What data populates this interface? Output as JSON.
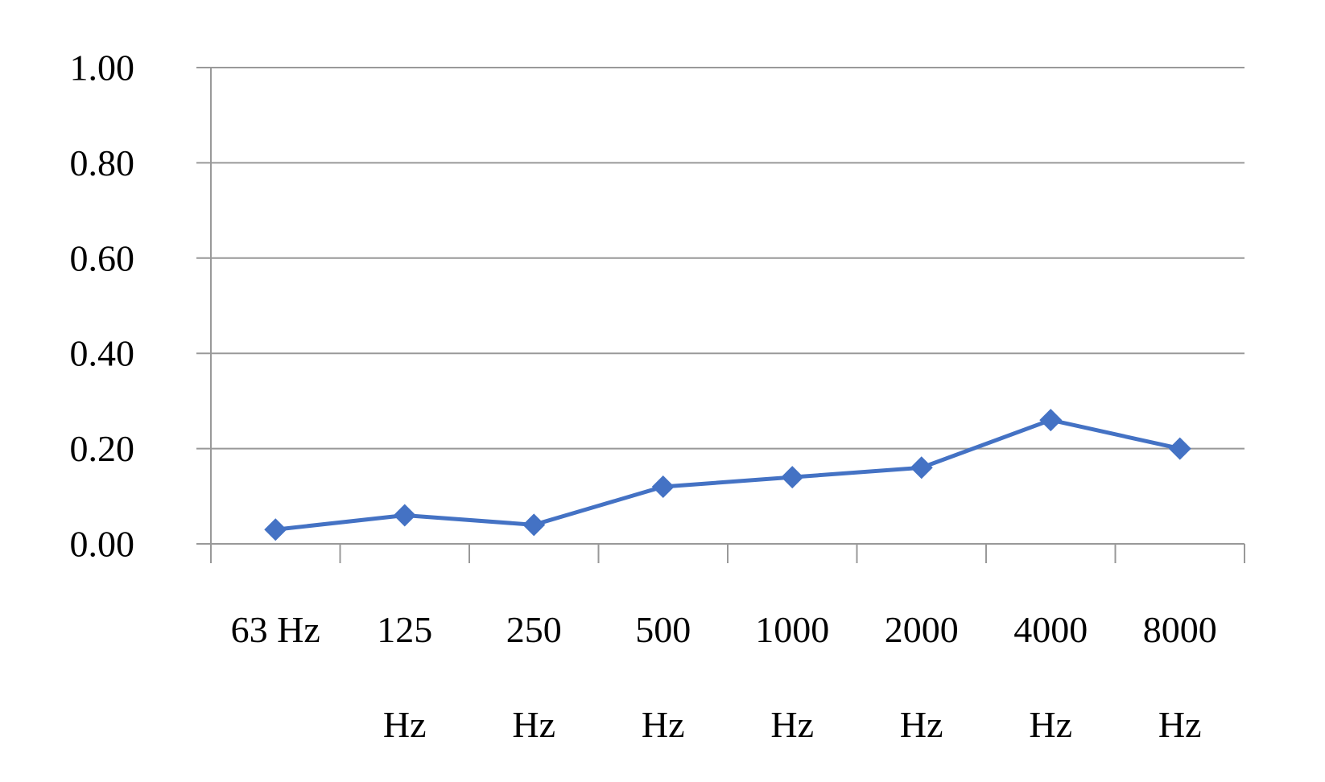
{
  "chart_data": {
    "type": "line",
    "categories": [
      [
        "63 Hz"
      ],
      [
        "125",
        "Hz"
      ],
      [
        "250",
        "Hz"
      ],
      [
        "500",
        "Hz"
      ],
      [
        "1000",
        "Hz"
      ],
      [
        "2000",
        "Hz"
      ],
      [
        "4000",
        "Hz"
      ],
      [
        "8000",
        "Hz"
      ]
    ],
    "series": [
      {
        "values": [
          0.03,
          0.06,
          0.04,
          0.12,
          0.14,
          0.16,
          0.26,
          0.2
        ],
        "color": "#4472C4",
        "marker": "diamond"
      }
    ],
    "y_ticks": [
      "0.00",
      "0.20",
      "0.40",
      "0.60",
      "0.80",
      "1.00"
    ],
    "ylim": [
      0,
      1
    ],
    "grid": true,
    "legend": "none",
    "title": "",
    "xlabel": "",
    "ylabel": ""
  }
}
